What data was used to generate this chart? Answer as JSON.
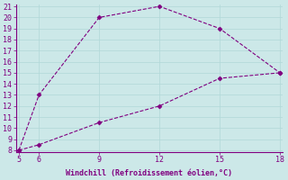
{
  "upper_x": [
    5,
    6,
    9,
    12,
    15,
    18
  ],
  "upper_y": [
    8,
    13,
    20,
    21,
    19,
    15
  ],
  "lower_x": [
    5,
    6,
    9,
    12,
    15,
    18
  ],
  "lower_y": [
    8,
    8.5,
    10.5,
    12,
    14.5,
    15
  ],
  "line_color": "#800080",
  "marker": "D",
  "marker_size": 2.5,
  "xlabel": "Windchill (Refroidissement éolien,°C)",
  "xlim": [
    5,
    18
  ],
  "ylim": [
    8,
    21
  ],
  "xticks": [
    5,
    6,
    9,
    12,
    15,
    18
  ],
  "yticks": [
    8,
    9,
    10,
    11,
    12,
    13,
    14,
    15,
    16,
    17,
    18,
    19,
    20,
    21
  ],
  "bg_color": "#cce8e8",
  "grid_color": "#b0d8d8",
  "tick_color": "#800080",
  "label_color": "#800080",
  "linewidth": 0.8,
  "linestyle": "--"
}
